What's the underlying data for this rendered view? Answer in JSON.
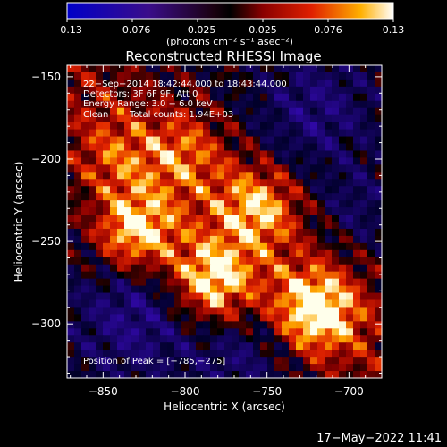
{
  "chart_data": {
    "type": "heatmap",
    "title": "Reconstructed RHESSI Image",
    "xlabel": "Heliocentric X (arcsec)",
    "ylabel": "Heliocentric Y (arcsec)",
    "xlim": [
      -872,
      -680
    ],
    "ylim": [
      -333,
      -143
    ],
    "x_ticks": [
      -850,
      -800,
      -750,
      -700
    ],
    "y_ticks": [
      -150,
      -200,
      -250,
      -300
    ],
    "x_tick_labels": [
      "−850",
      "−800",
      "−750",
      "−700"
    ],
    "y_tick_labels": [
      "−150",
      "−200",
      "−250",
      "−300"
    ],
    "colorbar": {
      "min": -0.13,
      "max": 0.13,
      "ticks": [
        "−0.13",
        "−0.076",
        "−0.025",
        "0.025",
        "0.076",
        "0.13"
      ],
      "units": "(photons cm⁻² s⁻¹ asec⁻²)"
    },
    "annotations": {
      "time_range": "22−Sep−2014 18:42:44.000 to 18:43:44.000",
      "detectors": "Detectors: 3F 6F 9F, Att 0",
      "energy": "Energy Range: 3.0 − 6.0 keV",
      "method": "Clean",
      "counts": "Total counts: 1.94E+03",
      "peak": "Position of Peak = [−785,−275]"
    },
    "peak_position": [
      -785,
      -275
    ],
    "bright_sources": [
      {
        "x": -830,
        "y": -245,
        "value": 0.13
      },
      {
        "x": -785,
        "y": -275,
        "value": 0.13
      },
      {
        "x": -720,
        "y": -292,
        "value": 0.12
      },
      {
        "x": -755,
        "y": -228,
        "value": 0.09
      },
      {
        "x": -800,
        "y": -195,
        "value": 0.06
      },
      {
        "x": -845,
        "y": -200,
        "value": 0.05
      }
    ]
  },
  "footer": {
    "date": "17−May−2022 11:41"
  }
}
